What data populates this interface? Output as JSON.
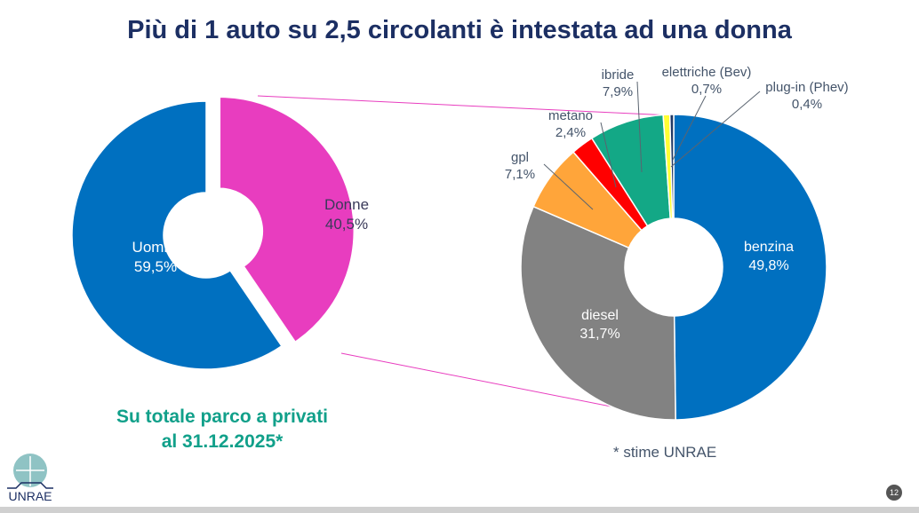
{
  "title": "Più di 1 auto su 2,5 circolanti è intestata ad una donna",
  "subtitle_lines": [
    "Su totale parco a privati",
    "al 31.12.2025*"
  ],
  "note": "* stime UNRAE",
  "page_number": "12",
  "logo_text": "UNRAE",
  "chart_data": [
    {
      "type": "pie",
      "variant": "donut",
      "exploded": "Donne",
      "categories": [
        "Uomini",
        "Donne"
      ],
      "values": [
        59.5,
        40.5
      ],
      "labels": [
        "59,5%",
        "40,5%"
      ],
      "colors": [
        "#0070c0",
        "#e83dbf"
      ]
    },
    {
      "type": "pie",
      "variant": "donut",
      "categories": [
        "benzina",
        "diesel",
        "gpl",
        "metano",
        "ibride",
        "elettriche (Bev)",
        "plug-in (Phev)"
      ],
      "values": [
        49.8,
        31.7,
        7.1,
        2.4,
        7.9,
        0.7,
        0.4
      ],
      "labels": [
        "49,8%",
        "31,7%",
        "7,1%",
        "2,4%",
        "7,9%",
        "0,7%",
        "0,4%"
      ],
      "colors": [
        "#0070c0",
        "#828282",
        "#ffa53a",
        "#ff0000",
        "#13a886",
        "#ffff33",
        "#1f3864"
      ]
    }
  ]
}
